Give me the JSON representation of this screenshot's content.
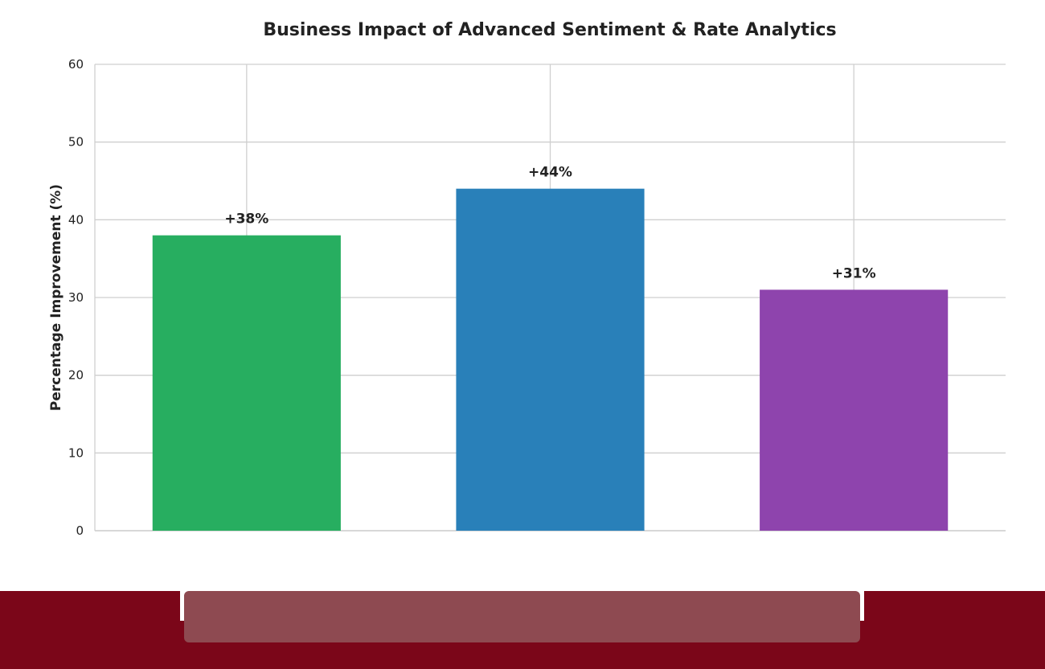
{
  "chart_data": {
    "type": "bar",
    "title": "Business Impact of Advanced Sentiment & Rate Analytics",
    "xlabel": "",
    "ylabel": "Percentage Improvement (%)",
    "categories": [
      "",
      "",
      ""
    ],
    "values": [
      38,
      44,
      31
    ],
    "data_labels": [
      "+38%",
      "+44%",
      "+31%"
    ],
    "colors": [
      "#27ae60",
      "#2980b9",
      "#8e44ad"
    ],
    "ylim": [
      0,
      60
    ],
    "yticks": [
      0,
      10,
      20,
      30,
      40,
      50,
      60
    ],
    "grid": true,
    "legend": "none"
  },
  "footer": {
    "bar_color": "#7b0619",
    "panel_color": "#8e4a51"
  }
}
